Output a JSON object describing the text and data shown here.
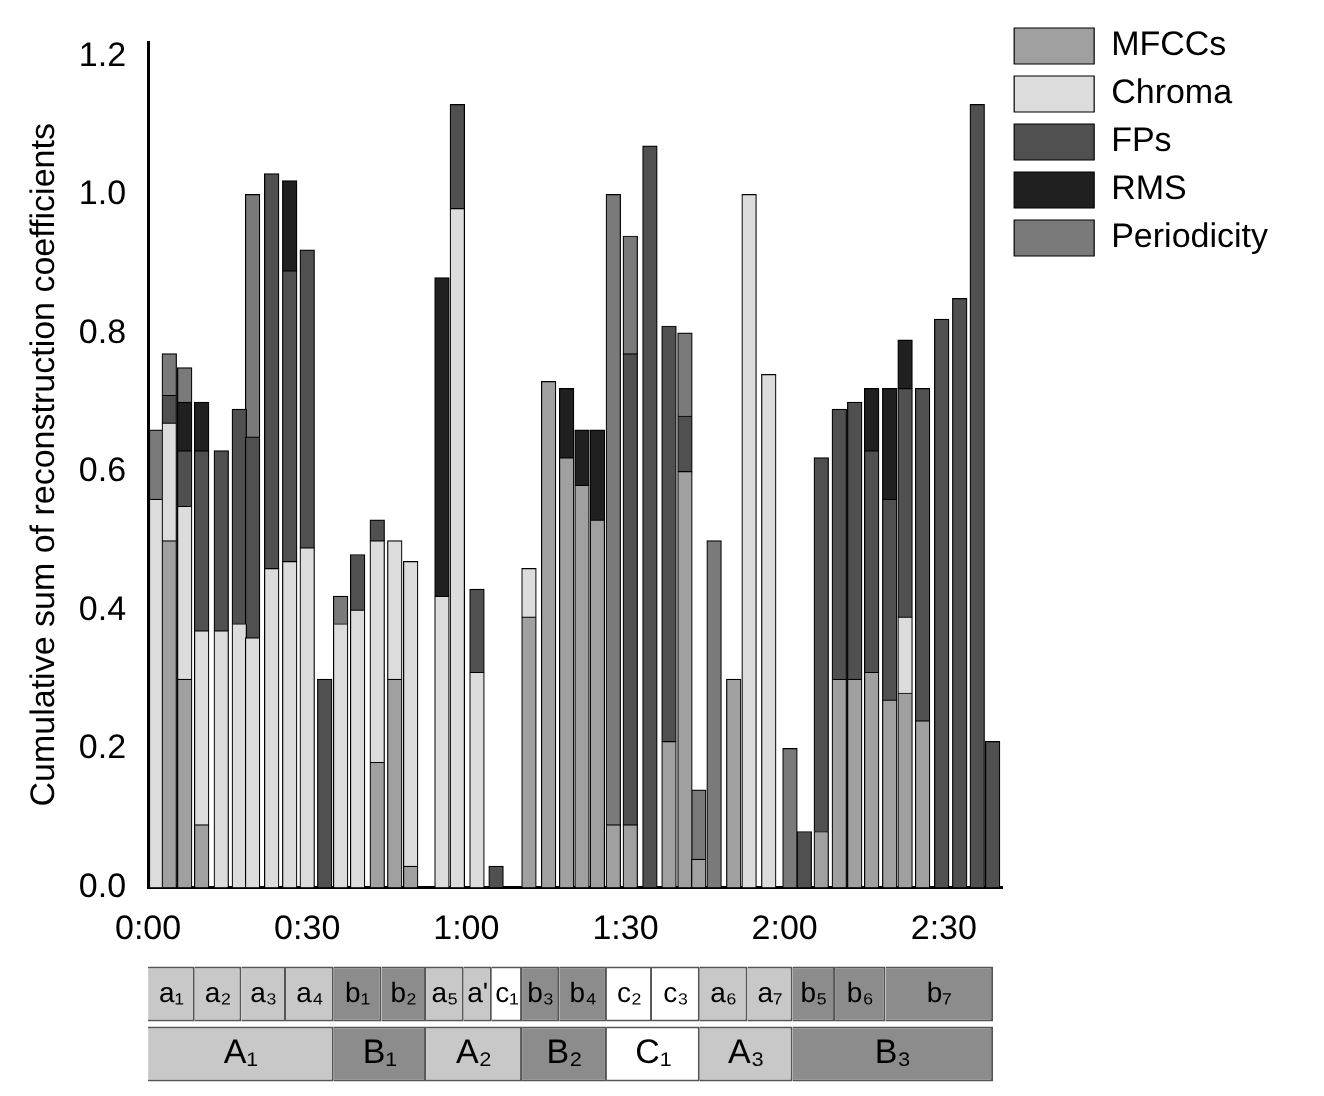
{
  "chart_data": [
    {
      "type": "bar",
      "stacked": true,
      "ylabel": "Cumulative sum of reconstruction coefficients",
      "x": [
        1.6,
        4.0,
        6.9,
        10.1,
        13.8,
        17.2,
        19.7,
        23.3,
        26.7,
        30.0,
        33.3,
        36.3,
        39.5,
        43.2,
        46.5,
        49.5,
        55.4,
        58.3,
        62.0,
        65.6,
        71.8,
        75.5,
        78.9,
        81.8,
        84.7,
        87.7,
        90.9,
        94.6,
        98.2,
        101.2,
        103.8,
        106.7,
        110.4,
        113.3,
        117.0,
        121.0,
        123.7,
        126.9,
        130.3,
        133.2,
        136.4,
        139.8,
        142.7,
        146.0,
        149.6,
        153.0,
        156.3,
        159.2
      ],
      "series": [
        {
          "name": "MFCCs",
          "color": "#a0a0a0",
          "values": [
            0,
            0.5,
            0.3,
            0.09,
            0,
            0,
            0,
            0,
            0,
            0,
            0,
            0,
            0,
            0.18,
            0.3,
            0.03,
            0,
            0,
            0,
            0,
            0.39,
            0.73,
            0.62,
            0.58,
            0.53,
            0.09,
            0.09,
            0,
            0.21,
            0.6,
            0.04,
            0,
            0.3,
            0,
            0,
            0,
            0,
            0.08,
            0.3,
            0.3,
            0.31,
            0.27,
            0.28,
            0.24,
            0,
            0,
            0,
            0
          ]
        },
        {
          "name": "Chroma",
          "color": "#dcdcdc",
          "values": [
            0.56,
            0.17,
            0.25,
            0.28,
            0.37,
            0.38,
            0.36,
            0.46,
            0.47,
            0.49,
            0,
            0.38,
            0.4,
            0.32,
            0.2,
            0.44,
            0.42,
            0.98,
            0.31,
            0,
            0.07,
            0,
            0,
            0,
            0,
            0,
            0,
            0,
            0,
            0,
            0,
            0,
            0,
            1.0,
            0.74,
            0,
            0,
            0,
            0,
            0,
            0,
            0,
            0.11,
            0,
            0,
            0,
            0,
            0
          ]
        },
        {
          "name": "FPs",
          "color": "#505050",
          "values": [
            0,
            0.04,
            0.08,
            0.26,
            0.26,
            0.31,
            0.29,
            0.57,
            0.42,
            0.43,
            0.3,
            0,
            0.08,
            0.03,
            0,
            0,
            0,
            0.15,
            0.12,
            0.03,
            0,
            0,
            0,
            0,
            0,
            0,
            0.68,
            1.07,
            0.6,
            0.08,
            0,
            0,
            0,
            0,
            0,
            0,
            0.08,
            0.54,
            0.39,
            0.4,
            0.32,
            0.29,
            0.33,
            0.48,
            0.82,
            0.85,
            1.13,
            0.21
          ]
        },
        {
          "name": "RMS",
          "color": "#202020",
          "values": [
            0,
            0,
            0.07,
            0.07,
            0,
            0,
            0,
            0,
            0.13,
            0,
            0,
            0,
            0,
            0,
            0,
            0,
            0.46,
            0,
            0,
            0,
            0,
            0,
            0.1,
            0.08,
            0.13,
            0,
            0,
            0,
            0,
            0,
            0,
            0,
            0,
            0,
            0,
            0,
            0,
            0,
            0,
            0,
            0.09,
            0.16,
            0.07,
            0,
            0,
            0,
            0,
            0
          ]
        },
        {
          "name": "Periodicity",
          "color": "#7a7a7a",
          "values": [
            0.1,
            0.06,
            0.05,
            0,
            0,
            0,
            0.35,
            0,
            0,
            0,
            0,
            0.04,
            0,
            0,
            0,
            0,
            0,
            0,
            0,
            0,
            0,
            0,
            0,
            0,
            0,
            0.91,
            0.17,
            0,
            0,
            0.12,
            0.1,
            0.5,
            0,
            0,
            0,
            0.2,
            0,
            0,
            0,
            0,
            0,
            0,
            0,
            0,
            0,
            0,
            0,
            0
          ]
        }
      ],
      "xlim": [
        0,
        161
      ],
      "xticks": [
        {
          "value": 0,
          "label": "0:00"
        },
        {
          "value": 30,
          "label": "0:30"
        },
        {
          "value": 60,
          "label": "1:00"
        },
        {
          "value": 90,
          "label": "1:30"
        },
        {
          "value": 120,
          "label": "2:00"
        },
        {
          "value": 150,
          "label": "2:30"
        }
      ],
      "ylim": [
        0,
        1.22
      ],
      "yticks": [
        {
          "value": 0,
          "label": "0.0"
        },
        {
          "value": 0.2,
          "label": "0.2"
        },
        {
          "value": 0.4,
          "label": "0.4"
        },
        {
          "value": 0.6,
          "label": "0.6"
        },
        {
          "value": 0.8,
          "label": "0.8"
        },
        {
          "value": 1.0,
          "label": "1.0"
        },
        {
          "value": 1.2,
          "label": "1.2"
        }
      ],
      "legend": "top right"
    },
    {
      "type": "bar",
      "orientation": "horizontal",
      "stacked": true,
      "categories": [
        null,
        null
      ],
      "xlim": [
        0,
        161
      ],
      "tick_labels": false,
      "series": [
        {
          "values": [
            8.8,
            35
          ],
          "colors": [
            "#c8c8c8",
            "#c8c8c8"
          ],
          "value_labels": [
            "a₁",
            "A₁"
          ]
        },
        {
          "values": [
            8.8,
            17.4
          ],
          "colors": [
            "#c8c8c8",
            "#8c8c8c"
          ],
          "value_labels": [
            "a₂",
            "B₁"
          ]
        },
        {
          "values": [
            8.4,
            18.1
          ],
          "colors": [
            "#c8c8c8",
            "#c8c8c8"
          ],
          "value_labels": [
            "a₃",
            "A₂"
          ]
        },
        {
          "values": [
            9,
            16
          ],
          "colors": [
            "#c8c8c8",
            "#8c8c8c"
          ],
          "value_labels": [
            "a₄",
            "B₂"
          ]
        },
        {
          "values": [
            9,
            17.5
          ],
          "colors": [
            "#8c8c8c",
            "#ffffff"
          ],
          "value_labels": [
            "b₁",
            "C₁"
          ]
        },
        {
          "values": [
            8.4,
            17.5
          ],
          "colors": [
            "#8c8c8c",
            "#c8c8c8"
          ],
          "value_labels": [
            "b₂",
            "A₃"
          ]
        },
        {
          "values": [
            7.1,
            37.8
          ],
          "colors": [
            "#c8c8c8",
            "#8c8c8c"
          ],
          "value_labels": [
            "a₅",
            "B₃"
          ]
        },
        {
          "values": [
            5.3,
            null
          ],
          "colors": [
            "#c8c8c8",
            null
          ],
          "value_labels": [
            "a'",
            null
          ]
        },
        {
          "values": [
            5.7,
            null
          ],
          "colors": [
            "#ffffff",
            null
          ],
          "value_labels": [
            "c₁",
            null
          ]
        },
        {
          "values": [
            7,
            null
          ],
          "colors": [
            "#8c8c8c",
            null
          ],
          "value_labels": [
            "b₃",
            null
          ]
        },
        {
          "values": [
            9,
            null
          ],
          "colors": [
            "#8c8c8c",
            null
          ],
          "value_labels": [
            "b₄",
            null
          ]
        },
        {
          "values": [
            8.5,
            null
          ],
          "colors": [
            "#ffffff",
            null
          ],
          "value_labels": [
            "c₂",
            null
          ]
        },
        {
          "values": [
            9,
            null
          ],
          "colors": [
            "#ffffff",
            null
          ],
          "value_labels": [
            "c₃",
            null
          ]
        },
        {
          "values": [
            9,
            null
          ],
          "colors": [
            "#c8c8c8",
            null
          ],
          "value_labels": [
            "a₆",
            null
          ]
        },
        {
          "values": [
            8.5,
            null
          ],
          "colors": [
            "#c8c8c8",
            null
          ],
          "value_labels": [
            "a₇",
            null
          ]
        },
        {
          "values": [
            8,
            null
          ],
          "colors": [
            "#8c8c8c",
            null
          ],
          "value_labels": [
            "b₅",
            null
          ]
        },
        {
          "values": [
            9.5,
            null
          ],
          "colors": [
            "#8c8c8c",
            null
          ],
          "value_labels": [
            "b₆",
            null
          ]
        },
        {
          "values": [
            20.3,
            null
          ],
          "colors": [
            "#8c8c8c",
            null
          ],
          "value_labels": [
            "b₇",
            null
          ]
        }
      ]
    }
  ]
}
